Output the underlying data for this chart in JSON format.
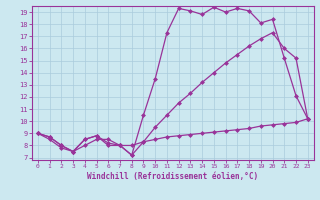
{
  "xlabel": "Windchill (Refroidissement éolien,°C)",
  "bg_color": "#cce8f0",
  "line_color": "#993399",
  "grid_color": "#aaccdd",
  "xlim": [
    -0.5,
    23.5
  ],
  "ylim": [
    6.8,
    19.5
  ],
  "xticks": [
    0,
    1,
    2,
    3,
    4,
    5,
    6,
    7,
    8,
    9,
    10,
    11,
    12,
    13,
    14,
    15,
    16,
    17,
    18,
    19,
    20,
    21,
    22,
    23
  ],
  "yticks": [
    7,
    8,
    9,
    10,
    11,
    12,
    13,
    14,
    15,
    16,
    17,
    18,
    19
  ],
  "line1_x": [
    0,
    1,
    2,
    3,
    4,
    5,
    6,
    7,
    8,
    9,
    10,
    11,
    12,
    13,
    14,
    15,
    16,
    17,
    18,
    19,
    20,
    21,
    22,
    23
  ],
  "line1_y": [
    9.0,
    8.7,
    8.0,
    7.5,
    8.5,
    8.8,
    8.0,
    8.0,
    7.2,
    10.5,
    13.5,
    17.3,
    19.3,
    19.1,
    18.8,
    19.4,
    19.0,
    19.3,
    19.1,
    18.1,
    18.4,
    15.2,
    12.1,
    10.2
  ],
  "line2_x": [
    0,
    1,
    2,
    3,
    4,
    5,
    6,
    7,
    8,
    9,
    10,
    11,
    12,
    13,
    14,
    15,
    16,
    17,
    18,
    19,
    20,
    21,
    22,
    23
  ],
  "line2_y": [
    9.0,
    8.7,
    8.0,
    7.5,
    8.5,
    8.8,
    8.2,
    8.0,
    7.2,
    8.3,
    9.5,
    10.5,
    11.5,
    12.3,
    13.2,
    14.0,
    14.8,
    15.5,
    16.2,
    16.8,
    17.3,
    16.0,
    15.2,
    10.2
  ],
  "line3_x": [
    0,
    1,
    2,
    3,
    4,
    5,
    6,
    7,
    8,
    9,
    10,
    11,
    12,
    13,
    14,
    15,
    16,
    17,
    18,
    19,
    20,
    21,
    22,
    23
  ],
  "line3_y": [
    9.0,
    8.5,
    7.8,
    7.5,
    8.0,
    8.5,
    8.5,
    8.0,
    8.0,
    8.3,
    8.5,
    8.7,
    8.8,
    8.9,
    9.0,
    9.1,
    9.2,
    9.3,
    9.4,
    9.6,
    9.7,
    9.8,
    9.9,
    10.2
  ],
  "marker": "D",
  "marker_size": 2.5,
  "linewidth": 0.9
}
